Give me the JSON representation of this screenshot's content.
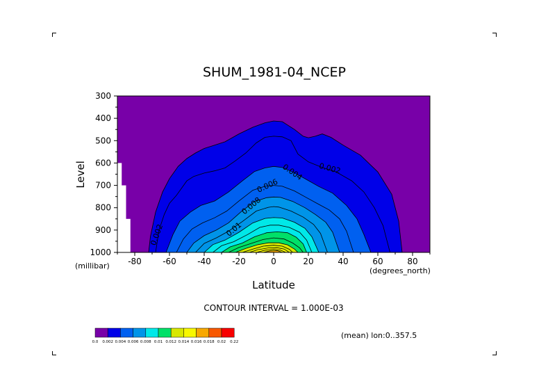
{
  "chart_data": {
    "type": "contour",
    "title": "SHUM_1981-04_NCEP",
    "xlabel": "Latitude",
    "ylabel": "Level",
    "x_unit": "(degrees_north)",
    "y_unit": "(millibar)",
    "xlim": [
      -90,
      90
    ],
    "ylim": [
      1000,
      300
    ],
    "x_ticks": [
      "-80",
      "-60",
      "-40",
      "-20",
      "0",
      "20",
      "40",
      "60",
      "80"
    ],
    "x_tick_values": [
      -80,
      -60,
      -40,
      -20,
      0,
      20,
      40,
      60,
      80
    ],
    "y_ticks": [
      "300",
      "400",
      "500",
      "600",
      "700",
      "800",
      "900",
      "1000"
    ],
    "y_tick_values": [
      300,
      400,
      500,
      600,
      700,
      800,
      900,
      1000
    ],
    "contour_interval_text": "CONTOUR INTERVAL = 1.000E-03",
    "subtitle": "(mean) lon:0..357.5",
    "contour_labels": [
      {
        "text": "0.002",
        "lat": 32,
        "lev": 635,
        "angle": 15
      },
      {
        "text": "0.004",
        "lat": 10,
        "lev": 650,
        "angle": 35
      },
      {
        "text": "0.006",
        "lat": -3,
        "lev": 712,
        "angle": -25
      },
      {
        "text": "0.008",
        "lat": -12,
        "lev": 800,
        "angle": -40
      },
      {
        "text": "0.01",
        "lat": -22,
        "lev": 905,
        "angle": -40
      },
      {
        "text": "0.002",
        "lat": -66,
        "lev": 925,
        "angle": -70
      }
    ],
    "colorbar": {
      "colors": [
        "#7800a8",
        "#0000e8",
        "#0060f0",
        "#0094e8",
        "#00e8e8",
        "#00e068",
        "#d8e800",
        "#f8f800",
        "#f8a800",
        "#f85800",
        "#f80000"
      ],
      "labels": [
        "0.0",
        "0.002",
        "0.004",
        "0.006",
        "0.008",
        "0.01",
        "0.012",
        "0.014",
        "0.016",
        "0.018",
        "0.02",
        "0.22"
      ]
    },
    "contours": [
      {
        "level": 0.001,
        "pts": [
          [
            -72,
            1000
          ],
          [
            -71,
            930
          ],
          [
            -68,
            820
          ],
          [
            -64,
            730
          ],
          [
            -60,
            670
          ],
          [
            -55,
            615
          ],
          [
            -50,
            580
          ],
          [
            -45,
            555
          ],
          [
            -40,
            535
          ],
          [
            -34,
            520
          ],
          [
            -28,
            505
          ],
          [
            -20,
            470
          ],
          [
            -12,
            440
          ],
          [
            -5,
            420
          ],
          [
            0,
            412
          ],
          [
            5,
            415
          ],
          [
            12,
            450
          ],
          [
            17,
            480
          ],
          [
            20,
            487
          ],
          [
            24,
            480
          ],
          [
            28,
            470
          ],
          [
            33,
            485
          ],
          [
            40,
            520
          ],
          [
            50,
            565
          ],
          [
            60,
            640
          ],
          [
            68,
            740
          ],
          [
            72,
            860
          ],
          [
            74,
            1000
          ]
        ]
      },
      {
        "level": 0.002,
        "pts": [
          [
            -68,
            1000
          ],
          [
            -66,
            900
          ],
          [
            -63,
            830
          ],
          [
            -60,
            780
          ],
          [
            -56,
            745
          ],
          [
            -50,
            680
          ],
          [
            -46,
            660
          ],
          [
            -40,
            645
          ],
          [
            -34,
            635
          ],
          [
            -28,
            622
          ],
          [
            -22,
            590
          ],
          [
            -16,
            555
          ],
          [
            -10,
            510
          ],
          [
            -5,
            485
          ],
          [
            0,
            480
          ],
          [
            5,
            483
          ],
          [
            10,
            500
          ],
          [
            14,
            560
          ],
          [
            20,
            595
          ],
          [
            28,
            620
          ],
          [
            36,
            640
          ],
          [
            45,
            680
          ],
          [
            52,
            730
          ],
          [
            58,
            800
          ],
          [
            63,
            880
          ],
          [
            67,
            1000
          ]
        ]
      },
      {
        "level": 0.003,
        "pts": [
          [
            -62,
            1000
          ],
          [
            -58,
            920
          ],
          [
            -54,
            860
          ],
          [
            -48,
            820
          ],
          [
            -42,
            790
          ],
          [
            -34,
            770
          ],
          [
            -26,
            730
          ],
          [
            -18,
            680
          ],
          [
            -11,
            638
          ],
          [
            -5,
            622
          ],
          [
            0,
            615
          ],
          [
            5,
            620
          ],
          [
            11,
            640
          ],
          [
            18,
            670
          ],
          [
            26,
            705
          ],
          [
            34,
            735
          ],
          [
            42,
            790
          ],
          [
            48,
            850
          ],
          [
            52,
            920
          ],
          [
            56,
            1000
          ]
        ]
      },
      {
        "level": 0.004,
        "pts": [
          [
            -56,
            1000
          ],
          [
            -52,
            940
          ],
          [
            -47,
            895
          ],
          [
            -41,
            868
          ],
          [
            -34,
            845
          ],
          [
            -27,
            815
          ],
          [
            -20,
            770
          ],
          [
            -12,
            722
          ],
          [
            -5,
            704
          ],
          [
            0,
            700
          ],
          [
            5,
            704
          ],
          [
            12,
            725
          ],
          [
            19,
            755
          ],
          [
            26,
            785
          ],
          [
            32,
            810
          ],
          [
            38,
            850
          ],
          [
            42,
            905
          ],
          [
            46,
            1000
          ]
        ]
      },
      {
        "level": 0.005,
        "pts": [
          [
            -50,
            1000
          ],
          [
            -46,
            958
          ],
          [
            -40,
            925
          ],
          [
            -33,
            900
          ],
          [
            -26,
            868
          ],
          [
            -19,
            820
          ],
          [
            -11,
            772
          ],
          [
            -4,
            755
          ],
          [
            0,
            752
          ],
          [
            4,
            754
          ],
          [
            11,
            772
          ],
          [
            18,
            800
          ],
          [
            24,
            830
          ],
          [
            30,
            865
          ],
          [
            34,
            910
          ],
          [
            38,
            1000
          ]
        ]
      },
      {
        "level": 0.006,
        "pts": [
          [
            -45,
            1000
          ],
          [
            -40,
            960
          ],
          [
            -33,
            935
          ],
          [
            -26,
            905
          ],
          [
            -18,
            862
          ],
          [
            -10,
            815
          ],
          [
            -3,
            798
          ],
          [
            0,
            795
          ],
          [
            3,
            797
          ],
          [
            10,
            815
          ],
          [
            17,
            842
          ],
          [
            23,
            875
          ],
          [
            27,
            915
          ],
          [
            31,
            1000
          ]
        ]
      },
      {
        "level": 0.007,
        "pts": [
          [
            -40,
            1000
          ],
          [
            -35,
            965
          ],
          [
            -28,
            945
          ],
          [
            -20,
            910
          ],
          [
            -12,
            868
          ],
          [
            -5,
            848
          ],
          [
            0,
            844
          ],
          [
            5,
            846
          ],
          [
            12,
            865
          ],
          [
            18,
            892
          ],
          [
            22,
            930
          ],
          [
            26,
            1000
          ]
        ]
      },
      {
        "level": 0.008,
        "pts": [
          [
            -35,
            1000
          ],
          [
            -30,
            970
          ],
          [
            -23,
            952
          ],
          [
            -15,
            920
          ],
          [
            -8,
            888
          ],
          [
            -2,
            878
          ],
          [
            3,
            878
          ],
          [
            9,
            888
          ],
          [
            15,
            910
          ],
          [
            19,
            945
          ],
          [
            22,
            1000
          ]
        ]
      },
      {
        "level": 0.009,
        "pts": [
          [
            -30,
            1000
          ],
          [
            -25,
            975
          ],
          [
            -18,
            958
          ],
          [
            -11,
            930
          ],
          [
            -4,
            912
          ],
          [
            2,
            908
          ],
          [
            8,
            912
          ],
          [
            13,
            932
          ],
          [
            17,
            962
          ],
          [
            19,
            1000
          ]
        ]
      },
      {
        "level": 0.01,
        "pts": [
          [
            -26,
            1000
          ],
          [
            -20,
            978
          ],
          [
            -13,
            960
          ],
          [
            -6,
            942
          ],
          [
            0,
            935
          ],
          [
            6,
            940
          ],
          [
            11,
            958
          ],
          [
            15,
            980
          ],
          [
            17,
            1000
          ]
        ]
      },
      {
        "level": 0.011,
        "pts": [
          [
            -22,
            1000
          ],
          [
            -16,
            982
          ],
          [
            -9,
            965
          ],
          [
            -3,
            957
          ],
          [
            3,
            957
          ],
          [
            8,
            966
          ],
          [
            12,
            985
          ],
          [
            14,
            1000
          ]
        ]
      },
      {
        "level": 0.012,
        "pts": [
          [
            -18,
            1000
          ],
          [
            -12,
            985
          ],
          [
            -6,
            972
          ],
          [
            0,
            968
          ],
          [
            5,
            972
          ],
          [
            9,
            986
          ],
          [
            11,
            1000
          ]
        ]
      },
      {
        "level": 0.013,
        "pts": [
          [
            -14,
            1000
          ],
          [
            -9,
            988
          ],
          [
            -3,
            980
          ],
          [
            2,
            979
          ],
          [
            6,
            985
          ],
          [
            9,
            1000
          ]
        ]
      },
      {
        "level": 0.014,
        "pts": [
          [
            -10,
            1000
          ],
          [
            -5,
            990
          ],
          [
            0,
            986
          ],
          [
            4,
            990
          ],
          [
            7,
            1000
          ]
        ]
      },
      {
        "level": 0.015,
        "pts": [
          [
            -6,
            1000
          ],
          [
            -2,
            993
          ],
          [
            2,
            992
          ],
          [
            5,
            1000
          ]
        ]
      }
    ]
  }
}
